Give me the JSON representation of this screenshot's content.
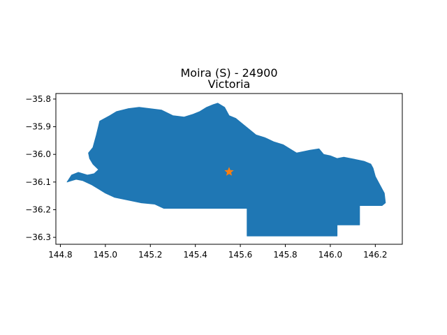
{
  "figure": {
    "title_line1": "Moira (S) - 24900",
    "title_line2": "Victoria"
  },
  "chart_data": {
    "type": "map",
    "title": "Moira (S) - 24900",
    "subtitle": "Victoria",
    "xlim": [
      144.78,
      146.32
    ],
    "ylim": [
      -36.325,
      -35.78
    ],
    "x_ticks": [
      {
        "value": 144.8,
        "label": "144.8"
      },
      {
        "value": 145.0,
        "label": "145.0"
      },
      {
        "value": 145.2,
        "label": "145.2"
      },
      {
        "value": 145.4,
        "label": "145.4"
      },
      {
        "value": 145.6,
        "label": "145.6"
      },
      {
        "value": 145.8,
        "label": "145.8"
      },
      {
        "value": 146.0,
        "label": "146.0"
      },
      {
        "value": 146.2,
        "label": "146.2"
      }
    ],
    "y_ticks": [
      {
        "value": -35.8,
        "label": "−35.8"
      },
      {
        "value": -35.9,
        "label": "−35.9"
      },
      {
        "value": -36.0,
        "label": "−36.0"
      },
      {
        "value": -36.1,
        "label": "−36.1"
      },
      {
        "value": -36.2,
        "label": "−36.2"
      },
      {
        "value": -36.3,
        "label": "−36.3"
      }
    ],
    "region_color": "#1f77b4",
    "marker_color": "#ff7f0e",
    "marker": {
      "lon": 145.55,
      "lat": -36.063,
      "symbol": "star"
    },
    "region_outline": [
      [
        144.83,
        -36.1
      ],
      [
        144.85,
        -36.075
      ],
      [
        144.88,
        -36.065
      ],
      [
        144.92,
        -36.075
      ],
      [
        144.95,
        -36.07
      ],
      [
        144.97,
        -36.055
      ],
      [
        144.945,
        -36.035
      ],
      [
        144.93,
        -36.015
      ],
      [
        144.925,
        -35.995
      ],
      [
        144.945,
        -35.975
      ],
      [
        144.96,
        -35.93
      ],
      [
        144.975,
        -35.88
      ],
      [
        145.02,
        -35.86
      ],
      [
        145.05,
        -35.845
      ],
      [
        145.1,
        -35.835
      ],
      [
        145.15,
        -35.83
      ],
      [
        145.2,
        -35.835
      ],
      [
        145.25,
        -35.84
      ],
      [
        145.3,
        -35.86
      ],
      [
        145.35,
        -35.865
      ],
      [
        145.39,
        -35.855
      ],
      [
        145.42,
        -35.845
      ],
      [
        145.45,
        -35.83
      ],
      [
        145.48,
        -35.82
      ],
      [
        145.5,
        -35.815
      ],
      [
        145.53,
        -35.83
      ],
      [
        145.55,
        -35.86
      ],
      [
        145.58,
        -35.87
      ],
      [
        145.61,
        -35.89
      ],
      [
        145.64,
        -35.91
      ],
      [
        145.67,
        -35.93
      ],
      [
        145.71,
        -35.94
      ],
      [
        145.75,
        -35.955
      ],
      [
        145.79,
        -35.965
      ],
      [
        145.82,
        -35.98
      ],
      [
        145.85,
        -35.995
      ],
      [
        145.88,
        -35.99
      ],
      [
        145.91,
        -35.985
      ],
      [
        145.95,
        -35.98
      ],
      [
        145.97,
        -36.0
      ],
      [
        146.0,
        -36.005
      ],
      [
        146.03,
        -36.015
      ],
      [
        146.06,
        -36.01
      ],
      [
        146.09,
        -36.015
      ],
      [
        146.12,
        -36.02
      ],
      [
        146.15,
        -36.025
      ],
      [
        146.18,
        -36.035
      ],
      [
        146.19,
        -36.05
      ],
      [
        146.2,
        -36.08
      ],
      [
        146.22,
        -36.11
      ],
      [
        146.24,
        -36.14
      ],
      [
        146.245,
        -36.175
      ],
      [
        146.23,
        -36.185
      ],
      [
        146.13,
        -36.185
      ],
      [
        146.13,
        -36.255
      ],
      [
        146.03,
        -36.255
      ],
      [
        146.03,
        -36.295
      ],
      [
        145.63,
        -36.295
      ],
      [
        145.63,
        -36.195
      ],
      [
        145.26,
        -36.195
      ],
      [
        145.22,
        -36.18
      ],
      [
        145.16,
        -36.175
      ],
      [
        145.1,
        -36.165
      ],
      [
        145.04,
        -36.155
      ],
      [
        145.0,
        -36.14
      ],
      [
        144.97,
        -36.125
      ],
      [
        144.94,
        -36.11
      ],
      [
        144.9,
        -36.095
      ],
      [
        144.87,
        -36.09
      ],
      [
        144.85,
        -36.095
      ],
      [
        144.83,
        -36.1
      ]
    ]
  }
}
